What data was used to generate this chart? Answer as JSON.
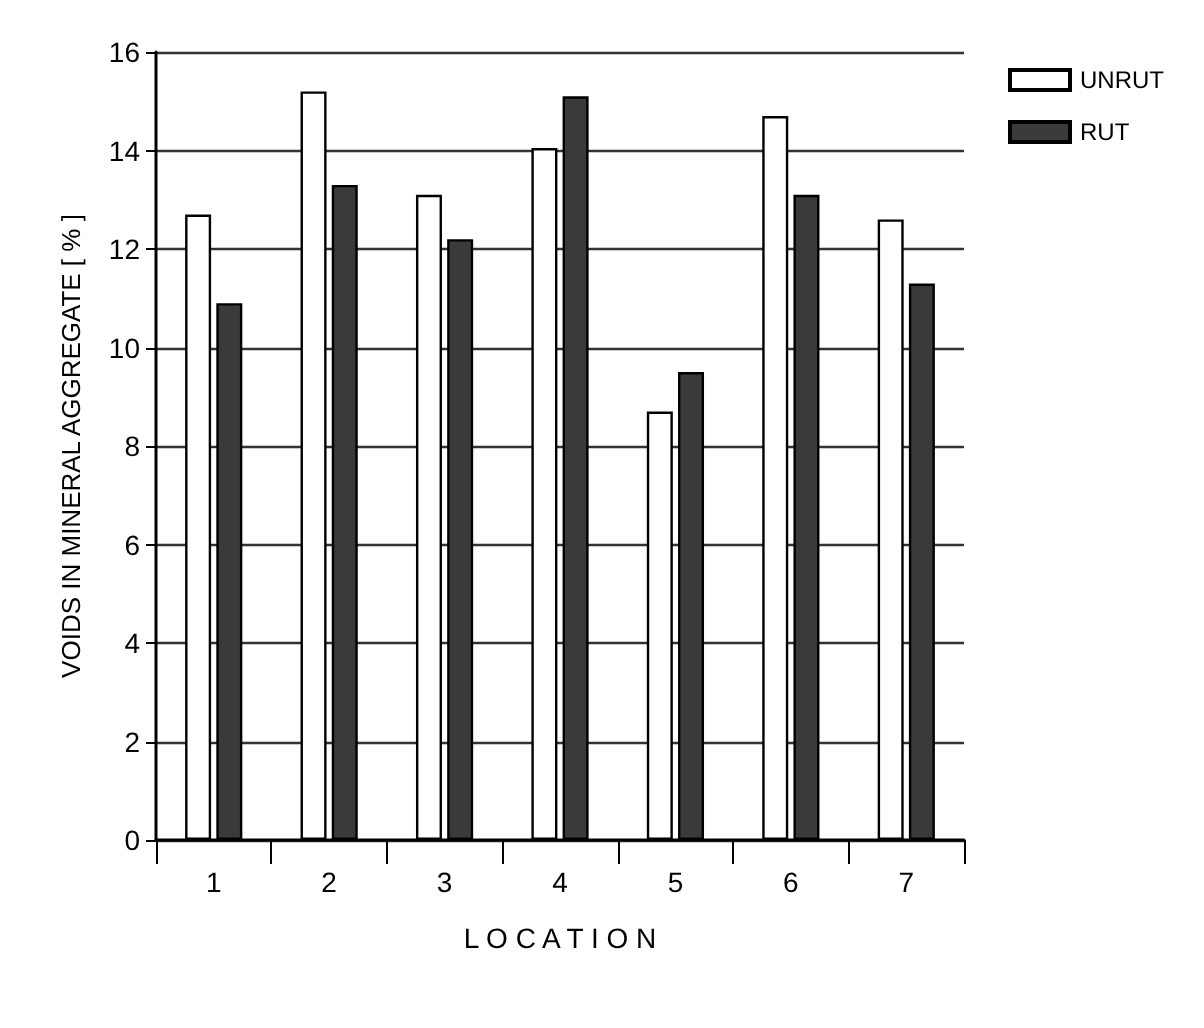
{
  "chart_data": {
    "type": "bar",
    "xlabel": "L O C A T I O N",
    "ylabel": "VOIDS IN MINERAL AGGREGATE [ % ]",
    "categories": [
      "1",
      "2",
      "3",
      "4",
      "5",
      "6",
      "7"
    ],
    "series": [
      {
        "name": "UNRUT",
        "color": "#ffffff",
        "values": [
          12.7,
          15.2,
          13.1,
          14.05,
          8.7,
          14.7,
          12.6
        ]
      },
      {
        "name": "RUT",
        "color": "#3a3a3a",
        "values": [
          10.9,
          13.3,
          12.2,
          15.1,
          9.5,
          13.1,
          11.3
        ]
      }
    ],
    "ylim": [
      0,
      16
    ],
    "yticks": [
      0,
      2,
      4,
      6,
      8,
      10,
      12,
      14,
      16
    ],
    "grid": "y",
    "legend": "top right"
  }
}
